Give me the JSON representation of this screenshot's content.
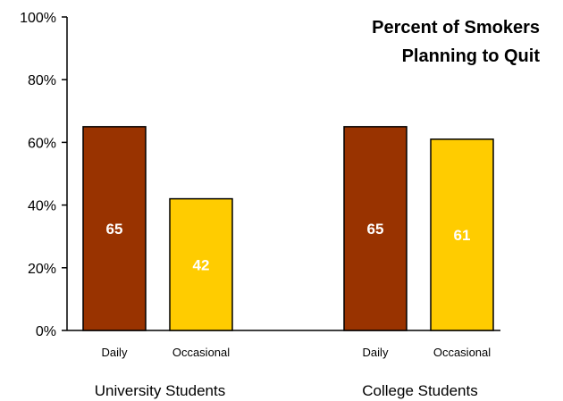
{
  "chart_data": {
    "type": "bar",
    "title": [
      "Percent of Smokers",
      "Planning to Quit"
    ],
    "groups": [
      {
        "label": "University Students",
        "bars": [
          {
            "category": "Daily",
            "value": 65,
            "label": "65",
            "color": "#993300"
          },
          {
            "category": "Occasional",
            "value": 42,
            "label": "42",
            "color": "#FFCC00"
          }
        ]
      },
      {
        "label": "College Students",
        "bars": [
          {
            "category": "Daily",
            "value": 65,
            "label": "65",
            "color": "#993300"
          },
          {
            "category": "Occasional",
            "value": 61,
            "label": "61",
            "color": "#FFCC00"
          }
        ]
      }
    ],
    "ylim": [
      0,
      100
    ],
    "yticks": [
      {
        "value": 0,
        "label": "0%"
      },
      {
        "value": 20,
        "label": "20%"
      },
      {
        "value": 40,
        "label": "40%"
      },
      {
        "value": 60,
        "label": "60%"
      },
      {
        "value": 80,
        "label": "80%"
      },
      {
        "value": 100,
        "label": "100%"
      }
    ],
    "grid": false,
    "legend": "none"
  }
}
